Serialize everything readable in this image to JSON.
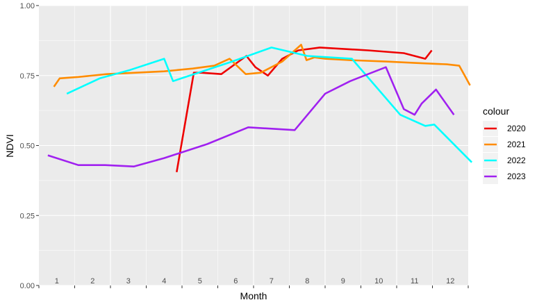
{
  "chart_data": {
    "type": "line",
    "xlabel": "Month",
    "ylabel": "NDVI",
    "ylim": [
      0,
      1
    ],
    "y_ticks": [
      "0.00",
      "0.25",
      "0.50",
      "0.75",
      "1.00"
    ],
    "y_tick_values": [
      0,
      0.25,
      0.5,
      0.75,
      1.0
    ],
    "xlim": [
      0.5,
      12.5
    ],
    "month_labels": [
      "1",
      "2",
      "3",
      "4",
      "5",
      "6",
      "7",
      "8",
      "9",
      "10",
      "11",
      "12"
    ],
    "grid": true,
    "background": "#EBEBEB",
    "legend": {
      "title": "colour",
      "position": "right"
    },
    "series": [
      {
        "name": "2020",
        "color": "#EE0000",
        "x": [
          4.35,
          4.83,
          5.05,
          5.6,
          6.3,
          6.55,
          6.9,
          7.3,
          7.75,
          8.35,
          9.7,
          10.7,
          11.3,
          11.48
        ],
        "y": [
          0.405,
          0.76,
          0.76,
          0.755,
          0.82,
          0.78,
          0.75,
          0.81,
          0.84,
          0.85,
          0.84,
          0.83,
          0.81,
          0.84
        ]
      },
      {
        "name": "2021",
        "color": "#FF8C00",
        "x": [
          0.92,
          1.08,
          1.6,
          2.4,
          3.2,
          4.0,
          4.8,
          5.4,
          5.83,
          6.28,
          6.7,
          7.3,
          7.83,
          7.98,
          8.2,
          8.5,
          9.2,
          10.2,
          11.0,
          11.9,
          12.25,
          12.4,
          12.55
        ],
        "y": [
          0.71,
          0.74,
          0.745,
          0.755,
          0.76,
          0.765,
          0.775,
          0.785,
          0.81,
          0.755,
          0.76,
          0.8,
          0.86,
          0.805,
          0.815,
          0.81,
          0.805,
          0.8,
          0.795,
          0.79,
          0.785,
          0.75,
          0.715
        ]
      },
      {
        "name": "2022",
        "color": "#00FFFF",
        "x": [
          1.28,
          2.2,
          3.05,
          4.0,
          4.25,
          5.9,
          7.0,
          8.0,
          9.25,
          10.6,
          11.3,
          11.55,
          12.6
        ],
        "y": [
          0.685,
          0.74,
          0.77,
          0.81,
          0.73,
          0.8,
          0.85,
          0.82,
          0.81,
          0.61,
          0.57,
          0.575,
          0.44
        ]
      },
      {
        "name": "2023",
        "color": "#A020F0",
        "x": [
          0.75,
          1.6,
          2.35,
          3.15,
          4.0,
          5.2,
          6.35,
          7.65,
          8.5,
          9.2,
          9.7,
          10.2,
          10.7,
          11.0,
          11.2,
          11.6,
          12.1
        ],
        "y": [
          0.465,
          0.43,
          0.43,
          0.425,
          0.455,
          0.505,
          0.565,
          0.555,
          0.685,
          0.73,
          0.755,
          0.78,
          0.63,
          0.61,
          0.65,
          0.7,
          0.61
        ]
      }
    ]
  }
}
